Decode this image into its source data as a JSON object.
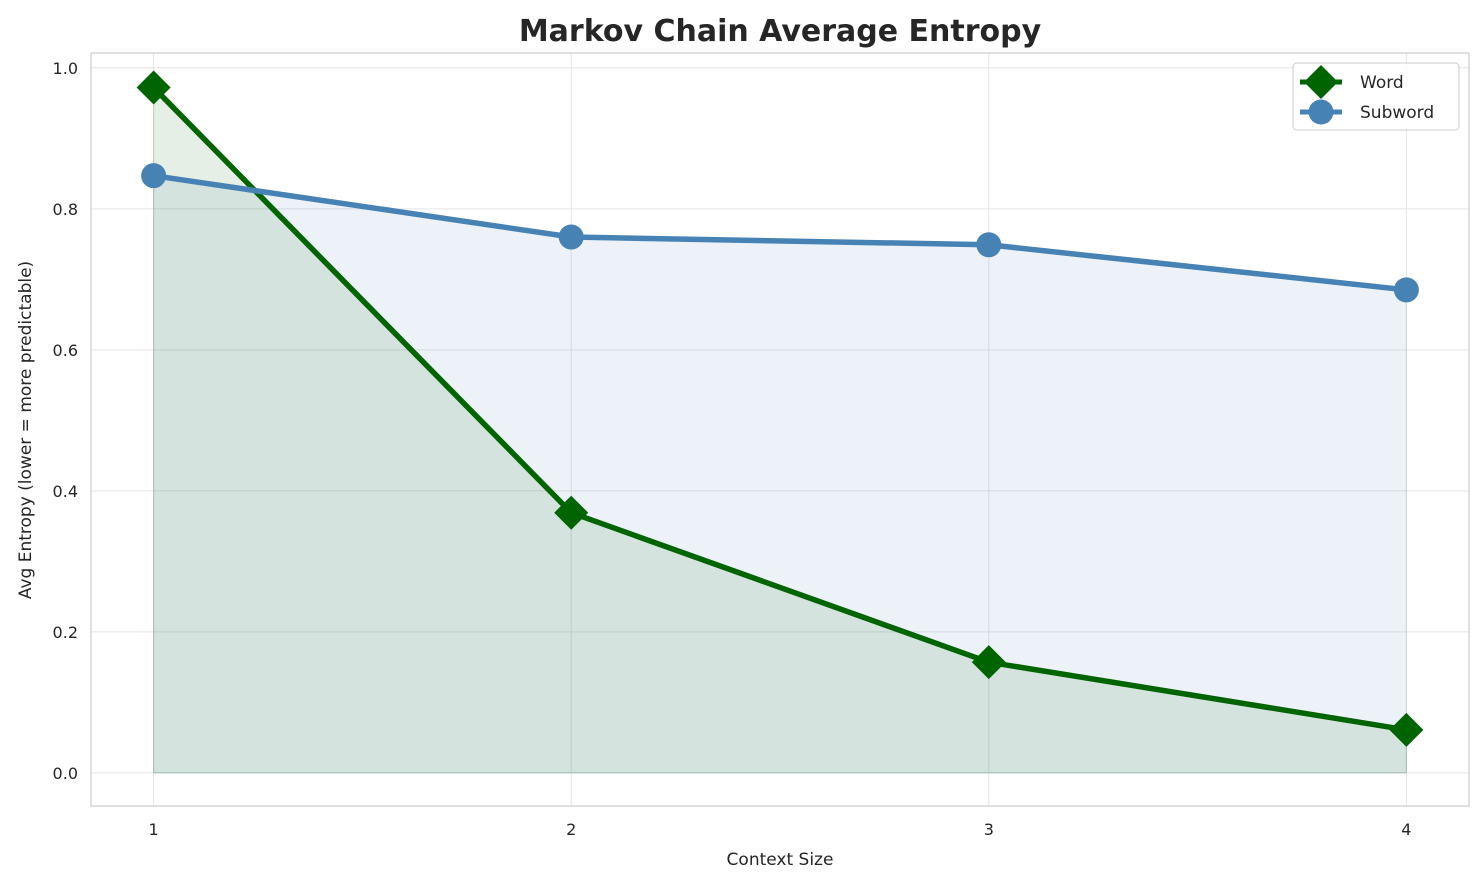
{
  "chart_data": {
    "type": "line",
    "title": "Markov Chain Average Entropy",
    "xlabel": "Context Size",
    "ylabel": "Avg Entropy (lower = more predictable)",
    "x": [
      1,
      2,
      3,
      4
    ],
    "xticks": [
      "1",
      "2",
      "3",
      "4"
    ],
    "yticks": [
      "0.0",
      "0.2",
      "0.4",
      "0.6",
      "0.8",
      "1.0"
    ],
    "xlim": [
      0.85,
      4.15
    ],
    "ylim": [
      -0.047,
      1.021
    ],
    "grid": true,
    "legend_position": "top-right",
    "series": [
      {
        "name": "Word",
        "values": [
          0.972,
          0.369,
          0.157,
          0.061
        ],
        "color": "#006400",
        "marker": "diamond",
        "fill_to_zero": true
      },
      {
        "name": "Subword",
        "values": [
          0.847,
          0.76,
          0.749,
          0.685
        ],
        "color": "#4682b4",
        "marker": "circle",
        "fill_to_zero": true
      }
    ]
  }
}
